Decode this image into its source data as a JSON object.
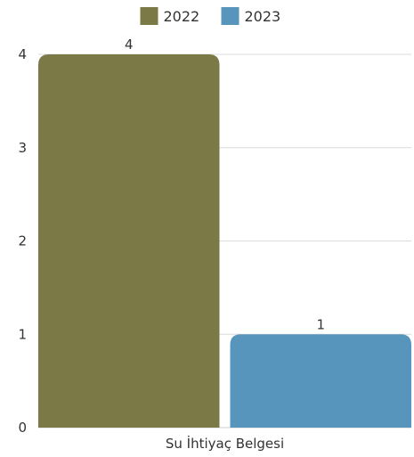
{
  "chart_data": {
    "type": "bar",
    "categories": [
      "Su İhtiyaç Belgesi"
    ],
    "series": [
      {
        "name": "2022",
        "values": [
          4
        ],
        "color": "#7b7946"
      },
      {
        "name": "2023",
        "values": [
          1
        ],
        "color": "#5895bc"
      }
    ],
    "title": "",
    "xlabel": "",
    "ylabel": "",
    "ylim": [
      0,
      4
    ],
    "yticks": [
      0,
      1,
      2,
      3,
      4
    ],
    "grid": true,
    "legend_position": "top-center",
    "data_labels": true
  }
}
